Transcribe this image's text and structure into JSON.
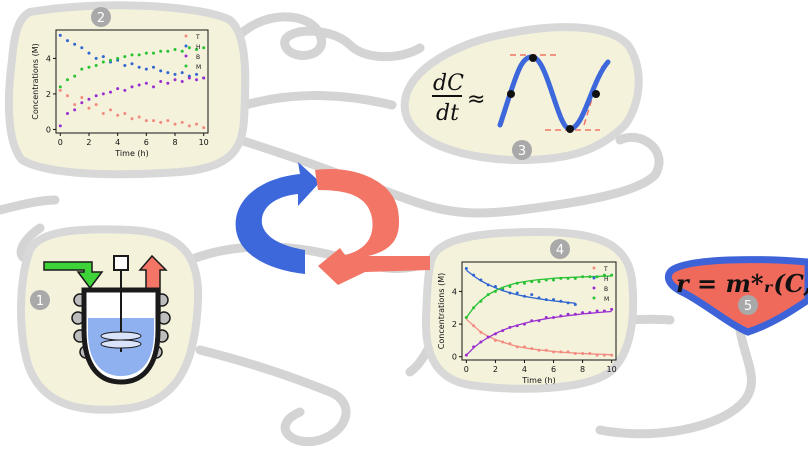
{
  "colors": {
    "blob_fill": "#f5f2dc",
    "blob_stroke": "#d8d8d8",
    "badge_fill": "#a9a9a9",
    "model_fill": "#f06a5c",
    "model_stroke": "#3e63d8",
    "arrow_blue": "#3d68dc",
    "arrow_red": "#f27565",
    "series_T": "#f28b7f",
    "series_H": "#2f66d0",
    "series_B": "#9a2fd0",
    "series_M": "#28c233"
  },
  "badges": {
    "b1": "1",
    "b2": "2",
    "b3": "3",
    "b4": "4",
    "b5": "5"
  },
  "derivative": {
    "numerator": "dC",
    "denominator": "dt",
    "approx": "≈"
  },
  "model_equation": "r = m*ᵣ(C, ϕ*ᵣ)",
  "chart_data": [
    {
      "type": "scatter",
      "panel": "2",
      "xlabel": "Time (h)",
      "ylabel": "Concentrations (M)",
      "xlim": [
        -0.3,
        10.3
      ],
      "ylim": [
        -0.2,
        5.6
      ],
      "xticks": [
        "0",
        "2",
        "4",
        "6",
        "8",
        "10"
      ],
      "yticks": [
        "0",
        "2",
        "4"
      ],
      "legend": [
        "T",
        "H",
        "B",
        "M"
      ],
      "legend_position": "top-right",
      "grid": false,
      "series": [
        {
          "name": "T",
          "x": [
            0,
            0.5,
            1,
            1.5,
            2,
            2.5,
            3,
            3.5,
            4,
            4.5,
            5,
            5.5,
            6,
            6.5,
            7,
            7.5,
            8,
            8.5,
            9,
            9.5,
            10
          ],
          "y": [
            2.2,
            1.9,
            1.4,
            1.8,
            1.2,
            1.4,
            0.9,
            1.1,
            0.8,
            0.9,
            0.6,
            0.7,
            0.5,
            0.5,
            0.4,
            0.5,
            0.3,
            0.4,
            0.2,
            0.3,
            0.1
          ]
        },
        {
          "name": "H",
          "x": [
            0,
            0.5,
            1,
            1.5,
            2,
            2.5,
            3,
            3.5,
            4,
            4.5,
            5,
            5.5,
            6,
            6.5,
            7,
            7.5,
            8,
            8.5,
            9,
            9.5,
            10
          ],
          "y": [
            5.3,
            5.0,
            4.8,
            4.6,
            4.3,
            4.0,
            4.1,
            3.8,
            3.9,
            3.6,
            3.7,
            3.5,
            3.4,
            3.5,
            3.3,
            3.2,
            3.1,
            3.2,
            3.0,
            3.1,
            2.9
          ]
        },
        {
          "name": "B",
          "x": [
            0,
            0.5,
            1,
            1.5,
            2,
            2.5,
            3,
            3.5,
            4,
            4.5,
            5,
            5.5,
            6,
            6.5,
            7,
            7.5,
            8,
            8.5,
            9,
            9.5,
            10
          ],
          "y": [
            0.2,
            0.9,
            1.1,
            1.5,
            1.7,
            1.9,
            2.0,
            2.1,
            2.3,
            2.2,
            2.4,
            2.5,
            2.6,
            2.4,
            2.7,
            2.6,
            2.8,
            2.7,
            2.9,
            2.8,
            2.9
          ]
        },
        {
          "name": "M",
          "x": [
            0,
            0.5,
            1,
            1.5,
            2,
            2.5,
            3,
            3.5,
            4,
            4.5,
            5,
            5.5,
            6,
            6.5,
            7,
            7.5,
            8,
            8.5,
            9,
            9.5,
            10
          ],
          "y": [
            2.4,
            2.8,
            3.0,
            3.4,
            3.5,
            3.6,
            3.8,
            3.9,
            4.0,
            4.1,
            4.2,
            4.2,
            4.3,
            4.3,
            4.4,
            4.4,
            4.5,
            4.4,
            4.6,
            4.5,
            4.6
          ]
        }
      ]
    },
    {
      "type": "scatter",
      "panel": "4",
      "xlabel": "Time (h)",
      "ylabel": "Concentrations (M)",
      "xlim": [
        -0.3,
        10.3
      ],
      "ylim": [
        -0.2,
        5.8
      ],
      "xticks": [
        "0",
        "2",
        "4",
        "6",
        "8",
        "10"
      ],
      "yticks": [
        "0",
        "2",
        "4"
      ],
      "legend": [
        "T",
        "H",
        "B",
        "M"
      ],
      "legend_position": "top-right",
      "grid": false,
      "series": [
        {
          "name": "T",
          "x": [
            0,
            0.5,
            1,
            1.5,
            2,
            2.5,
            3,
            3.5,
            4,
            4.5,
            5,
            5.5,
            6,
            6.5,
            7,
            7.5,
            8,
            8.5,
            9,
            9.5,
            10
          ],
          "y": [
            2.4,
            1.9,
            1.5,
            1.2,
            1.0,
            0.9,
            0.8,
            0.6,
            0.6,
            0.5,
            0.4,
            0.4,
            0.3,
            0.3,
            0.3,
            0.2,
            0.2,
            0.2,
            0.1,
            0.1,
            0.1
          ],
          "fit_y": [
            2.3,
            1.9,
            1.5,
            1.25,
            1.05,
            0.9,
            0.75,
            0.63,
            0.55,
            0.48,
            0.42,
            0.37,
            0.32,
            0.28,
            0.25,
            0.22,
            0.2,
            0.18,
            0.16,
            0.14,
            0.12
          ]
        },
        {
          "name": "H",
          "x": [
            0,
            0.5,
            1,
            1.5,
            2,
            2.5,
            3,
            3.5,
            4,
            4.5,
            5,
            5.5,
            6,
            6.5,
            7,
            7.5
          ],
          "y": [
            5.4,
            5.0,
            4.7,
            4.4,
            4.3,
            4.1,
            3.9,
            3.9,
            3.7,
            3.8,
            3.6,
            3.5,
            3.5,
            3.4,
            3.3,
            3.2
          ],
          "fit_y": [
            5.3,
            4.95,
            4.65,
            4.42,
            4.22,
            4.05,
            3.92,
            3.8,
            3.7,
            3.62,
            3.55,
            3.48,
            3.42,
            3.37,
            3.32,
            3.28
          ]
        },
        {
          "name": "B",
          "x": [
            0,
            0.5,
            1,
            1.5,
            2,
            2.5,
            3,
            3.5,
            4,
            4.5,
            5,
            5.5,
            6,
            6.5,
            7,
            7.5,
            8,
            8.5,
            9,
            9.5,
            10
          ],
          "y": [
            0.1,
            0.6,
            0.9,
            1.2,
            1.4,
            1.6,
            1.8,
            1.9,
            2.0,
            2.2,
            2.2,
            2.4,
            2.4,
            2.5,
            2.6,
            2.6,
            2.7,
            2.7,
            2.8,
            2.8,
            2.9
          ],
          "fit_y": [
            0.1,
            0.55,
            0.9,
            1.18,
            1.42,
            1.62,
            1.79,
            1.93,
            2.05,
            2.16,
            2.25,
            2.33,
            2.4,
            2.46,
            2.52,
            2.57,
            2.62,
            2.66,
            2.7,
            2.74,
            2.77
          ]
        },
        {
          "name": "M",
          "x": [
            0,
            0.5,
            1,
            1.5,
            2,
            2.5,
            3,
            3.5,
            4,
            4.5,
            5,
            5.5,
            6,
            6.5,
            7,
            7.5,
            8,
            8.5,
            9,
            9.5,
            10
          ],
          "y": [
            2.4,
            3.0,
            3.4,
            3.8,
            4.0,
            4.2,
            4.3,
            4.5,
            4.5,
            4.6,
            4.6,
            4.7,
            4.7,
            4.8,
            4.8,
            4.8,
            4.9,
            4.9,
            4.9,
            5.0,
            5.0
          ],
          "fit_y": [
            2.4,
            3.0,
            3.45,
            3.8,
            4.05,
            4.25,
            4.4,
            4.52,
            4.6,
            4.67,
            4.72,
            4.76,
            4.8,
            4.83,
            4.85,
            4.87,
            4.89,
            4.9,
            4.92,
            4.93,
            4.94
          ]
        }
      ]
    }
  ]
}
